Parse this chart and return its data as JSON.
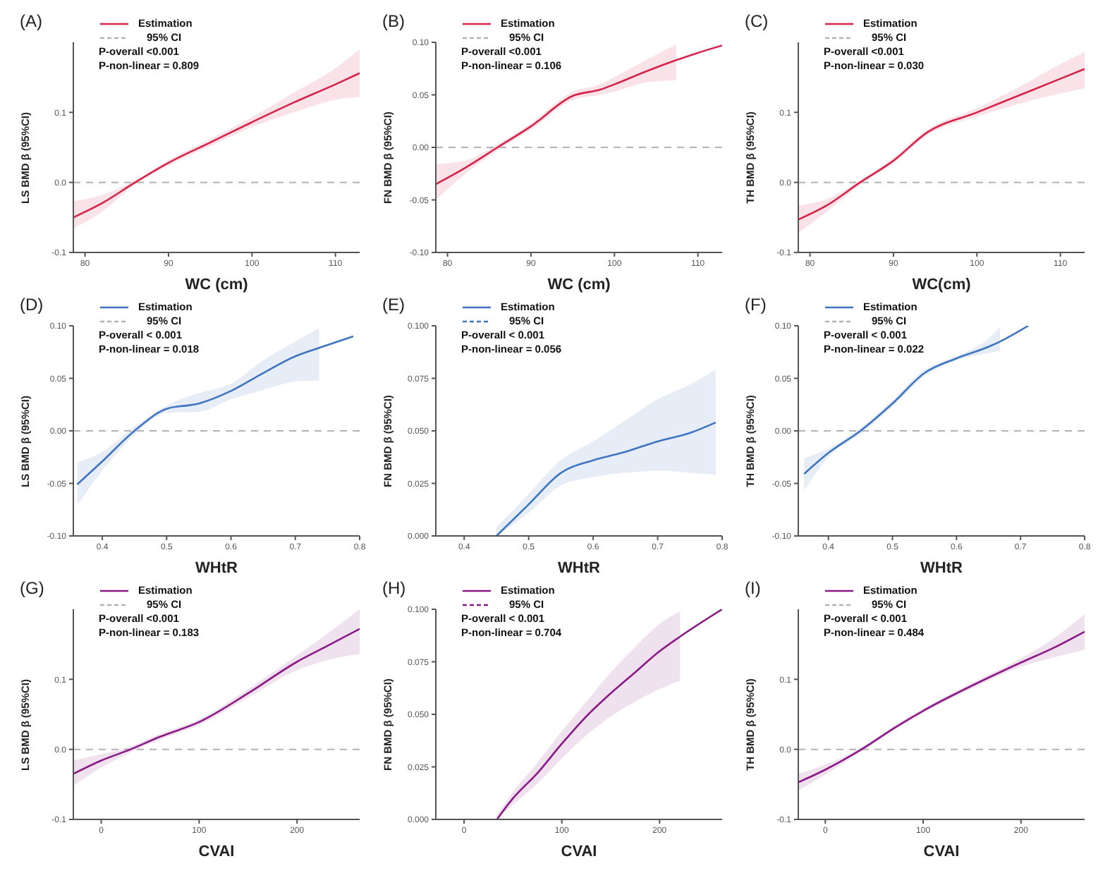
{
  "chart_data": [
    {
      "type": "line",
      "title": "(A)",
      "xlabel": "WC (cm)",
      "ylabel": "LS BMD β (95%CI)",
      "xlim": [
        78.6,
        112.9
      ],
      "xticks": [
        80,
        90,
        100,
        110
      ],
      "ylim": [
        -0.1,
        0.2
      ],
      "yticks": [
        -0.1,
        {
          "value": 0,
          "label": "0.0"
        },
        0.1
      ],
      "grid": false,
      "legend": "top left",
      "marker": "none",
      "line_style": "solid",
      "annotations": [
        "95% CI",
        "P-overall <0.001",
        "P-non-linear = 0.809"
      ],
      "ref_lines": [
        {
          "axis": "y",
          "value": 0,
          "color": "#b3b3b3",
          "line_style": "dashed"
        }
      ],
      "series": [
        {
          "name": "Estimation",
          "color": "#d6234a",
          "x": [
            78.6,
            82,
            86,
            90,
            95,
            100,
            105,
            110,
            112.9
          ],
          "values": [
            -0.05,
            -0.03,
            0,
            0.028,
            0.057,
            0.086,
            0.114,
            0.14,
            0.156
          ],
          "lower": [
            -0.066,
            -0.042,
            -0.003,
            0.024,
            0.052,
            0.079,
            0.1,
            0.118,
            0.122
          ],
          "upper": [
            -0.027,
            -0.018,
            0.003,
            0.032,
            0.062,
            0.093,
            0.128,
            0.163,
            0.19
          ]
        }
      ]
    },
    {
      "type": "line",
      "title": "(B)",
      "xlabel": "WC (cm)",
      "ylabel": "FN BMD β (95%CI)",
      "xlim": [
        78.6,
        112.9
      ],
      "xticks": [
        80,
        90,
        100,
        110
      ],
      "ylim": [
        -0.1,
        0.1
      ],
      "yticks": [
        {
          "value": -0.1,
          "label": "-0.10"
        },
        -0.05,
        {
          "value": 0,
          "label": "0.00"
        },
        0.05,
        {
          "value": 0.1,
          "label": "0.10"
        }
      ],
      "grid": false,
      "legend": "top left",
      "marker": "none",
      "line_style": "solid",
      "annotations": [
        "95% CI",
        "P-overall <0.001",
        "P-non-linear = 0.106"
      ],
      "ref_lines": [
        {
          "axis": "y",
          "value": 0,
          "color": "#b3b3b3",
          "line_style": "dashed"
        }
      ],
      "series": [
        {
          "name": "Estimation",
          "color": "#d6234a",
          "x": [
            78.6,
            82,
            86,
            90,
            95,
            98.3,
            100,
            104,
            107.4,
            110,
            112.9
          ],
          "values": [
            -0.035,
            -0.02,
            0,
            0.02,
            0.049,
            0.055,
            0.06,
            0.073,
            0.083,
            0.09,
            0.097
          ],
          "lower": [
            -0.05,
            -0.026,
            -0.003,
            0.017,
            0.045,
            0.05,
            0.053,
            0.062,
            0.064,
            null,
            null
          ],
          "upper": [
            -0.016,
            -0.013,
            0.003,
            0.023,
            0.053,
            0.06,
            0.067,
            0.084,
            0.098,
            null,
            null
          ]
        }
      ]
    },
    {
      "type": "line",
      "title": "(C)",
      "xlabel": "WC(cm)",
      "ylabel": "TH BMD β (95%CI)",
      "xlim": [
        78.6,
        112.9
      ],
      "xticks": [
        80,
        90,
        100,
        110
      ],
      "ylim": [
        -0.1,
        0.2
      ],
      "yticks": [
        -0.1,
        {
          "value": 0,
          "label": "0.0"
        },
        0.1
      ],
      "grid": false,
      "legend": "top left",
      "marker": "none",
      "line_style": "solid",
      "annotations": [
        "95% CI",
        "P-overall <0.001",
        "P-non-linear = 0.030"
      ],
      "ref_lines": [
        {
          "axis": "y",
          "value": 0,
          "color": "#b3b3b3",
          "line_style": "dashed"
        }
      ],
      "series": [
        {
          "name": "Estimation",
          "color": "#d6234a",
          "x": [
            78.6,
            82,
            86,
            90,
            94,
            100,
            105,
            110,
            112.9
          ],
          "values": [
            -0.053,
            -0.033,
            0,
            0.031,
            0.071,
            0.1,
            0.124,
            0.148,
            0.162
          ],
          "lower": [
            -0.072,
            -0.042,
            -0.003,
            0.027,
            0.067,
            0.094,
            0.112,
            0.127,
            0.134
          ],
          "upper": [
            -0.033,
            -0.024,
            0.003,
            0.035,
            0.075,
            0.106,
            0.136,
            0.169,
            0.186
          ]
        }
      ]
    },
    {
      "type": "line",
      "title": "(D)",
      "xlabel": "WHtR",
      "ylabel": "LS BMD β (95%CI)",
      "xlim": [
        0.355,
        0.8
      ],
      "xticks": [
        0.4,
        0.5,
        0.6,
        0.7,
        0.8
      ],
      "ylim": [
        -0.1,
        0.1
      ],
      "yticks": [
        {
          "value": -0.1,
          "label": "-0.10"
        },
        -0.05,
        {
          "value": 0,
          "label": "0.00"
        },
        0.05,
        {
          "value": 0.1,
          "label": "0.10"
        }
      ],
      "grid": false,
      "legend": "top left",
      "marker": "none",
      "line_style": "solid",
      "annotations": [
        "95% CI",
        "P-overall < 0.001",
        "P-non-linear = 0.018"
      ],
      "ref_lines": [
        {
          "axis": "y",
          "value": 0,
          "color": "#b3b3b3",
          "line_style": "dashed"
        }
      ],
      "series": [
        {
          "name": "Estimation",
          "color": "#3f74c0",
          "x": [
            0.361,
            0.4,
            0.45,
            0.5,
            0.55,
            0.6,
            0.65,
            0.7,
            0.737,
            0.79
          ],
          "values": [
            -0.051,
            -0.029,
            0,
            0.021,
            0.026,
            0.038,
            0.055,
            0.071,
            0.079,
            0.09
          ],
          "lower": [
            -0.071,
            -0.038,
            -0.004,
            0.017,
            0.018,
            0.03,
            0.039,
            0.047,
            0.048,
            null
          ],
          "upper": [
            -0.03,
            -0.02,
            0.004,
            0.024,
            0.036,
            0.045,
            0.067,
            0.085,
            0.098,
            null
          ]
        }
      ]
    },
    {
      "type": "line",
      "title": "(E)",
      "xlabel": "WHtR",
      "ylabel": "FN BMD β (95%CI)",
      "xlim": [
        0.356,
        0.8
      ],
      "xticks": [
        0.4,
        0.5,
        0.6,
        0.7,
        0.8
      ],
      "ylim": [
        0,
        0.1
      ],
      "yticks": [
        {
          "value": 0,
          "label": "0.000"
        },
        {
          "value": 0.025,
          "label": "0.025"
        },
        {
          "value": 0.05,
          "label": "0.050"
        },
        {
          "value": 0.075,
          "label": "0.075"
        },
        {
          "value": 0.1,
          "label": "0.100"
        }
      ],
      "grid": false,
      "legend": "top left",
      "marker": "none",
      "line_style": "solid",
      "annotations": [
        "95% CI",
        "P-overall < 0.001",
        "P-non-linear = 0.056"
      ],
      "series": [
        {
          "name": "Estimation",
          "color": "#3f74c0",
          "x": [
            0.45,
            0.5,
            0.55,
            0.6,
            0.65,
            0.7,
            0.75,
            0.79
          ],
          "values": [
            0,
            0.015,
            0.03,
            0.036,
            0.04,
            0.045,
            0.049,
            0.054
          ],
          "lower": [
            0,
            0.011,
            0.024,
            0.028,
            0.03,
            0.031,
            0.03,
            0.029
          ],
          "upper": [
            0.004,
            0.02,
            0.036,
            0.045,
            0.055,
            0.065,
            0.072,
            0.079
          ]
        }
      ]
    },
    {
      "type": "line",
      "title": "(F)",
      "xlabel": "WHtR",
      "ylabel": "TH BMD β (95%CI)",
      "xlim": [
        0.353,
        0.8
      ],
      "xticks": [
        0.4,
        0.5,
        0.6,
        0.7,
        0.8
      ],
      "ylim": [
        -0.1,
        0.1
      ],
      "yticks": [
        {
          "value": -0.1,
          "label": "-0.10"
        },
        -0.05,
        {
          "value": 0,
          "label": "0.00"
        },
        0.05,
        {
          "value": 0.1,
          "label": "0.10"
        }
      ],
      "grid": false,
      "legend": "top left",
      "marker": "none",
      "line_style": "solid",
      "annotations": [
        "95% CI",
        "P-overall < 0.001",
        "P-non-linear = 0.022"
      ],
      "ref_lines": [
        {
          "axis": "y",
          "value": 0,
          "color": "#b3b3b3",
          "line_style": "dashed"
        }
      ],
      "series": [
        {
          "name": "Estimation",
          "color": "#3f74c0",
          "x": [
            0.362,
            0.4,
            0.45,
            0.5,
            0.55,
            0.6,
            0.65,
            0.668,
            0.712
          ],
          "values": [
            -0.041,
            -0.021,
            0,
            0.026,
            0.055,
            0.069,
            0.08,
            0.085,
            0.1
          ],
          "lower": [
            -0.057,
            -0.025,
            -0.003,
            0.023,
            0.052,
            0.067,
            0.074,
            0.076,
            null
          ],
          "upper": [
            -0.026,
            -0.017,
            0.003,
            0.029,
            0.058,
            0.071,
            0.088,
            0.099,
            null
          ]
        }
      ]
    },
    {
      "type": "line",
      "title": "(G)",
      "xlabel": "CVAI",
      "ylabel": "LS BMD β (95%CI)",
      "xlim": [
        -28.5,
        264
      ],
      "xticks": [
        0,
        100,
        200
      ],
      "ylim": [
        -0.1,
        0.2
      ],
      "yticks": [
        -0.1,
        {
          "value": 0,
          "label": "0.0"
        },
        0.1
      ],
      "grid": false,
      "legend": "top left",
      "marker": "none",
      "line_style": "solid",
      "annotations": [
        "95% CI",
        "P-overall <0.001",
        "P-non-linear = 0.183"
      ],
      "ref_lines": [
        {
          "axis": "y",
          "value": 0,
          "color": "#b3b3b3",
          "line_style": "dashed"
        }
      ],
      "series": [
        {
          "name": "Estimation",
          "color": "#8a1a86",
          "x": [
            -28.5,
            0,
            30,
            60,
            100,
            150,
            200,
            230,
            264
          ],
          "values": [
            -0.035,
            -0.016,
            0,
            0.018,
            0.039,
            0.08,
            0.125,
            0.147,
            0.172
          ],
          "lower": [
            -0.052,
            -0.026,
            -0.004,
            0.014,
            0.035,
            0.074,
            0.113,
            0.127,
            0.136
          ],
          "upper": [
            -0.016,
            -0.007,
            0.004,
            0.022,
            0.043,
            0.086,
            0.134,
            0.164,
            0.2
          ]
        }
      ]
    },
    {
      "type": "line",
      "title": "(H)",
      "xlabel": "CVAI",
      "ylabel": "FN BMD β (95%CI)",
      "xlim": [
        -28.9,
        264
      ],
      "xticks": [
        0,
        100,
        200
      ],
      "ylim": [
        0,
        0.1
      ],
      "yticks": [
        {
          "value": 0,
          "label": "0.000"
        },
        {
          "value": 0.025,
          "label": "0.025"
        },
        {
          "value": 0.05,
          "label": "0.050"
        },
        {
          "value": 0.075,
          "label": "0.075"
        },
        {
          "value": 0.1,
          "label": "0.100"
        }
      ],
      "grid": false,
      "legend": "top left",
      "marker": "none",
      "line_style": "solid",
      "annotations": [
        "95% CI",
        "P-overall < 0.001",
        "P-non-linear = 0.704"
      ],
      "series": [
        {
          "name": "Estimation",
          "color": "#8a1a86",
          "x": [
            33.6,
            50,
            75,
            100,
            125,
            150,
            175,
            200,
            221,
            264
          ],
          "values": [
            0,
            0.01,
            0.022,
            0.036,
            0.049,
            0.06,
            0.07,
            0.08,
            0.087,
            0.1
          ],
          "lower": [
            0,
            0.007,
            0.017,
            0.029,
            0.04,
            0.049,
            0.056,
            0.062,
            0.066,
            null
          ],
          "upper": [
            0.002,
            0.013,
            0.027,
            0.042,
            0.056,
            0.07,
            0.082,
            0.093,
            0.099,
            null
          ]
        }
      ]
    },
    {
      "type": "line",
      "title": "(I)",
      "xlabel": "CVAI",
      "ylabel": "TH BMD β (95%CI)",
      "xlim": [
        -27.6,
        265
      ],
      "xticks": [
        0,
        100,
        200
      ],
      "ylim": [
        -0.1,
        0.2
      ],
      "yticks": [
        -0.1,
        {
          "value": 0,
          "label": "0.0"
        },
        0.1
      ],
      "grid": false,
      "legend": "top left",
      "marker": "none",
      "line_style": "solid",
      "annotations": [
        "95% CI",
        "P-overall < 0.001",
        "P-non-linear = 0.484"
      ],
      "ref_lines": [
        {
          "axis": "y",
          "value": 0,
          "color": "#b3b3b3",
          "line_style": "dashed"
        }
      ],
      "series": [
        {
          "name": "Estimation",
          "color": "#8a1a86",
          "x": [
            -27.6,
            0,
            37,
            70,
            100,
            150,
            200,
            235,
            265
          ],
          "values": [
            -0.047,
            -0.029,
            0,
            0.03,
            0.055,
            0.091,
            0.124,
            0.146,
            0.168
          ],
          "lower": [
            -0.059,
            -0.036,
            -0.003,
            0.027,
            0.052,
            0.087,
            0.118,
            0.132,
            0.142
          ],
          "upper": [
            -0.035,
            -0.022,
            0.003,
            0.033,
            0.058,
            0.095,
            0.13,
            0.16,
            0.193
          ]
        }
      ]
    }
  ]
}
